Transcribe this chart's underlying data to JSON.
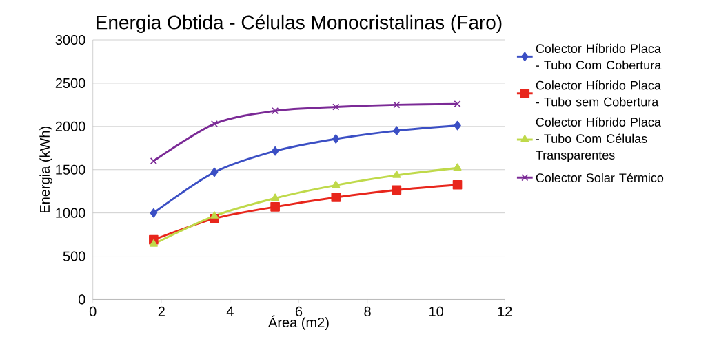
{
  "chart_data": {
    "type": "line",
    "title": "Energia Obtida - Células Monocristalinas (Faro)",
    "xlabel": "Área (m2)",
    "ylabel": "Energia (kWh)",
    "x": [
      1.77,
      3.54,
      5.31,
      7.08,
      8.85,
      10.62
    ],
    "series": [
      {
        "name": "Colector Híbrido Placa - Tubo Com Cobertura",
        "color": "#3b4fc4",
        "marker": "diamond",
        "values": [
          1000,
          1470,
          1715,
          1855,
          1950,
          2010
        ]
      },
      {
        "name": "Colector Híbrido Placa - Tubo sem Cobertura",
        "color": "#e8261c",
        "marker": "square",
        "values": [
          690,
          935,
          1070,
          1180,
          1265,
          1325
        ]
      },
      {
        "name": "Colector Híbrido Placa - Tubo Com Células Transparentes",
        "color": "#bfd94a",
        "marker": "triangle",
        "values": [
          640,
          965,
          1170,
          1320,
          1435,
          1520
        ]
      },
      {
        "name": "Colector Solar Térmico",
        "color": "#7b2a96",
        "marker": "cross",
        "values": [
          1600,
          2030,
          2180,
          2225,
          2250,
          2260
        ]
      }
    ],
    "xlim": [
      0,
      12
    ],
    "xticks": [
      0,
      2,
      4,
      6,
      8,
      10,
      12
    ],
    "ylim": [
      0,
      3000
    ],
    "yticks": [
      0,
      500,
      1000,
      1500,
      2000,
      2500,
      3000
    ],
    "grid": "y",
    "legend": "right",
    "line_style": "solid"
  }
}
